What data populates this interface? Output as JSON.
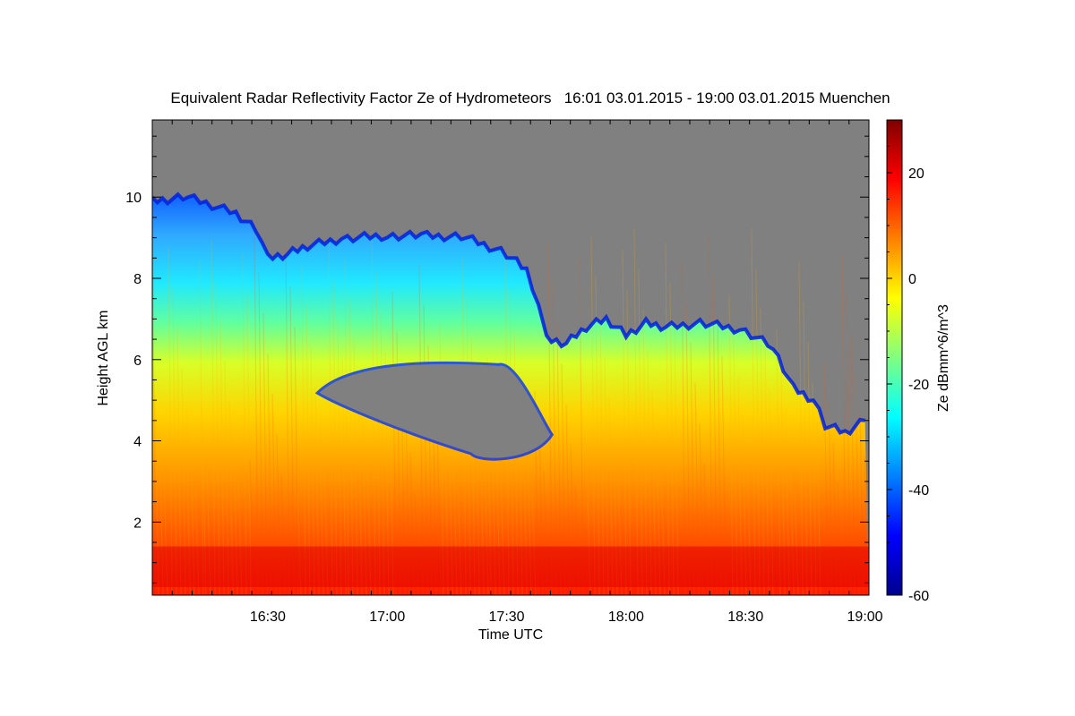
{
  "chart_data": {
    "type": "heatmap",
    "title": "Equivalent Radar Reflectivity Factor Ze of Hydrometeors   16:01 03.01.2015 - 19:00 03.01.2015 Muenchen",
    "xlabel": "Time UTC",
    "ylabel": "Height AGL km",
    "colorbar_label": "Ze dBmm^6/m^3",
    "xlim": [
      "16:01",
      "19:01"
    ],
    "ylim": [
      0.2,
      11.9
    ],
    "x_ticks": [
      "16:30",
      "17:00",
      "17:30",
      "18:00",
      "18:30",
      "19:00"
    ],
    "y_ticks": [
      "2",
      "4",
      "6",
      "8",
      "10"
    ],
    "colorbar_range": [
      -60,
      30
    ],
    "colorbar_ticks": [
      "20",
      "0",
      "-20",
      "-40",
      "-60"
    ],
    "no_data_color": "#808080",
    "colormap": [
      "#00008f",
      "#0000ff",
      "#0080ff",
      "#00ffff",
      "#80ff80",
      "#ffff00",
      "#ff8000",
      "#ff0000",
      "#800000"
    ],
    "cloud_top_km": [
      {
        "time": "16:01",
        "top": 9.9
      },
      {
        "time": "16:10",
        "top": 10.0
      },
      {
        "time": "16:16",
        "top": 9.8
      },
      {
        "time": "16:22",
        "top": 9.6
      },
      {
        "time": "16:27",
        "top": 9.2
      },
      {
        "time": "16:30",
        "top": 8.5
      },
      {
        "time": "16:35",
        "top": 8.6
      },
      {
        "time": "16:40",
        "top": 8.8
      },
      {
        "time": "16:50",
        "top": 9.0
      },
      {
        "time": "17:00",
        "top": 9.05
      },
      {
        "time": "17:10",
        "top": 9.05
      },
      {
        "time": "17:20",
        "top": 9.0
      },
      {
        "time": "17:30",
        "top": 8.6
      },
      {
        "time": "17:35",
        "top": 8.2
      },
      {
        "time": "17:38",
        "top": 7.4
      },
      {
        "time": "17:40",
        "top": 6.5
      },
      {
        "time": "17:45",
        "top": 6.4
      },
      {
        "time": "17:50",
        "top": 6.8
      },
      {
        "time": "17:55",
        "top": 7.0
      },
      {
        "time": "18:00",
        "top": 6.6
      },
      {
        "time": "18:05",
        "top": 6.9
      },
      {
        "time": "18:10",
        "top": 6.8
      },
      {
        "time": "18:20",
        "top": 6.9
      },
      {
        "time": "18:30",
        "top": 6.7
      },
      {
        "time": "18:37",
        "top": 6.3
      },
      {
        "time": "18:42",
        "top": 5.3
      },
      {
        "time": "18:47",
        "top": 5.0
      },
      {
        "time": "18:50",
        "top": 4.4
      },
      {
        "time": "18:55",
        "top": 4.2
      },
      {
        "time": "19:00",
        "top": 4.5
      }
    ],
    "clear_gap": {
      "start": "16:43",
      "end": "17:41",
      "bottom_km": 3.6,
      "top_km": 5.8
    },
    "melting_layer_km": [
      0.4,
      1.4
    ]
  }
}
